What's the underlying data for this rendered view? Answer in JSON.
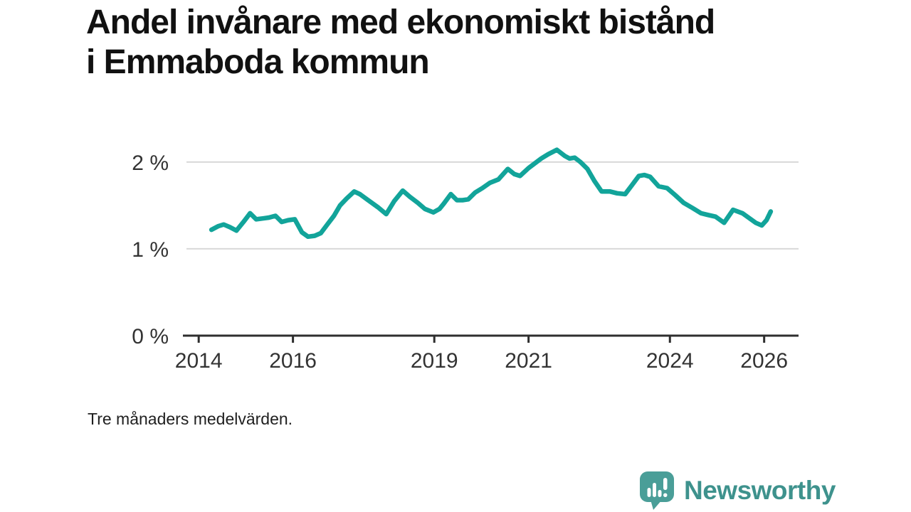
{
  "title": "Andel invånare med ekonomiskt bistånd i Emmaboda kommun",
  "footnote": "Tre månaders medelvärden.",
  "brand": {
    "name": "Newsworthy",
    "icon": "speech-bubble-bar-chart-icon",
    "text_color": "#3e928d",
    "icon_color": "#4a9e98"
  },
  "chart_data": {
    "type": "line",
    "title": "Andel invånare med ekonomiskt bistånd i Emmaboda kommun",
    "xlabel": "",
    "ylabel": "",
    "grid": "horizontal",
    "legend": "none",
    "line_color": "#12a49a",
    "axis_color": "#2e2e2e",
    "grid_color": "#d8d8d8",
    "xlim": [
      2013.68,
      2026.73
    ],
    "ylim": [
      0,
      2.4
    ],
    "x_ticks": [
      {
        "value": 2014,
        "label": "2014"
      },
      {
        "value": 2016,
        "label": "2016"
      },
      {
        "value": 2019,
        "label": "2019"
      },
      {
        "value": 2021,
        "label": "2021"
      },
      {
        "value": 2024,
        "label": "2024"
      },
      {
        "value": 2026,
        "label": "2026"
      }
    ],
    "y_ticks": [
      {
        "value": 0,
        "label": "0 %"
      },
      {
        "value": 1,
        "label": "1 %"
      },
      {
        "value": 2,
        "label": "2 %"
      }
    ],
    "series": [
      {
        "name": "Andel invånare med ekonomiskt bistånd (%)",
        "points": [
          [
            2014.27,
            1.22
          ],
          [
            2014.41,
            1.26
          ],
          [
            2014.53,
            1.28
          ],
          [
            2014.66,
            1.25
          ],
          [
            2014.8,
            1.21
          ],
          [
            2014.95,
            1.31
          ],
          [
            2015.09,
            1.41
          ],
          [
            2015.22,
            1.34
          ],
          [
            2015.36,
            1.35
          ],
          [
            2015.49,
            1.36
          ],
          [
            2015.63,
            1.38
          ],
          [
            2015.76,
            1.31
          ],
          [
            2015.9,
            1.33
          ],
          [
            2016.04,
            1.34
          ],
          [
            2016.19,
            1.19
          ],
          [
            2016.32,
            1.14
          ],
          [
            2016.46,
            1.15
          ],
          [
            2016.59,
            1.18
          ],
          [
            2016.73,
            1.28
          ],
          [
            2016.87,
            1.38
          ],
          [
            2017.0,
            1.5
          ],
          [
            2017.14,
            1.58
          ],
          [
            2017.3,
            1.66
          ],
          [
            2017.42,
            1.63
          ],
          [
            2017.57,
            1.57
          ],
          [
            2017.8,
            1.48
          ],
          [
            2017.98,
            1.4
          ],
          [
            2018.15,
            1.55
          ],
          [
            2018.33,
            1.67
          ],
          [
            2018.48,
            1.6
          ],
          [
            2018.65,
            1.53
          ],
          [
            2018.8,
            1.46
          ],
          [
            2018.98,
            1.42
          ],
          [
            2019.11,
            1.46
          ],
          [
            2019.2,
            1.52
          ],
          [
            2019.35,
            1.63
          ],
          [
            2019.48,
            1.56
          ],
          [
            2019.6,
            1.56
          ],
          [
            2019.72,
            1.57
          ],
          [
            2019.87,
            1.65
          ],
          [
            2020.02,
            1.7
          ],
          [
            2020.18,
            1.76
          ],
          [
            2020.36,
            1.8
          ],
          [
            2020.56,
            1.92
          ],
          [
            2020.7,
            1.86
          ],
          [
            2020.82,
            1.84
          ],
          [
            2021.0,
            1.93
          ],
          [
            2021.27,
            2.04
          ],
          [
            2021.42,
            2.09
          ],
          [
            2021.6,
            2.14
          ],
          [
            2021.77,
            2.07
          ],
          [
            2021.87,
            2.04
          ],
          [
            2021.98,
            2.05
          ],
          [
            2022.1,
            2.0
          ],
          [
            2022.25,
            1.92
          ],
          [
            2022.4,
            1.78
          ],
          [
            2022.55,
            1.66
          ],
          [
            2022.73,
            1.66
          ],
          [
            2022.88,
            1.64
          ],
          [
            2023.05,
            1.63
          ],
          [
            2023.19,
            1.73
          ],
          [
            2023.34,
            1.84
          ],
          [
            2023.46,
            1.85
          ],
          [
            2023.58,
            1.83
          ],
          [
            2023.76,
            1.72
          ],
          [
            2023.94,
            1.7
          ],
          [
            2024.11,
            1.62
          ],
          [
            2024.29,
            1.53
          ],
          [
            2024.48,
            1.47
          ],
          [
            2024.66,
            1.41
          ],
          [
            2024.81,
            1.39
          ],
          [
            2024.97,
            1.37
          ],
          [
            2025.15,
            1.3
          ],
          [
            2025.34,
            1.45
          ],
          [
            2025.54,
            1.41
          ],
          [
            2025.82,
            1.3
          ],
          [
            2025.95,
            1.27
          ],
          [
            2026.05,
            1.33
          ],
          [
            2026.14,
            1.43
          ]
        ]
      }
    ]
  }
}
